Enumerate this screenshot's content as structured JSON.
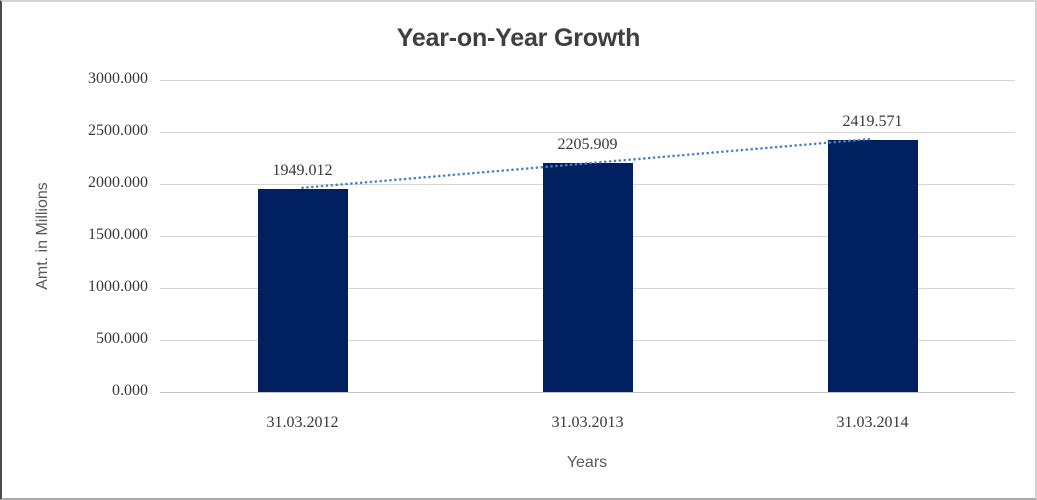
{
  "chart_data": {
    "type": "bar",
    "title": "Year-on-Year Growth",
    "xlabel": "Years",
    "ylabel": "Amt. in Millions",
    "categories": [
      "31.03.2012",
      "31.03.2013",
      "31.03.2014"
    ],
    "values": [
      1949.012,
      2205.909,
      2419.571
    ],
    "value_labels": [
      "1949.012",
      "2205.909",
      "2419.571"
    ],
    "y_ticks": [
      0,
      500,
      1000,
      1500,
      2000,
      2500,
      3000
    ],
    "y_tick_labels": [
      "0.000",
      "500.000",
      "1000.000",
      "1500.000",
      "2000.000",
      "2500.000",
      "3000.000"
    ],
    "ylim": [
      0,
      3000
    ],
    "grid": true,
    "legend": "none",
    "trendline": {
      "type": "linear",
      "style": "dotted"
    },
    "colors": {
      "bar": "#002060",
      "trend": "#4584c6",
      "grid": "#d6d6d6",
      "label_text": "#373737",
      "axis_title_text": "#595959",
      "title_text": "#3f3f3f"
    }
  }
}
